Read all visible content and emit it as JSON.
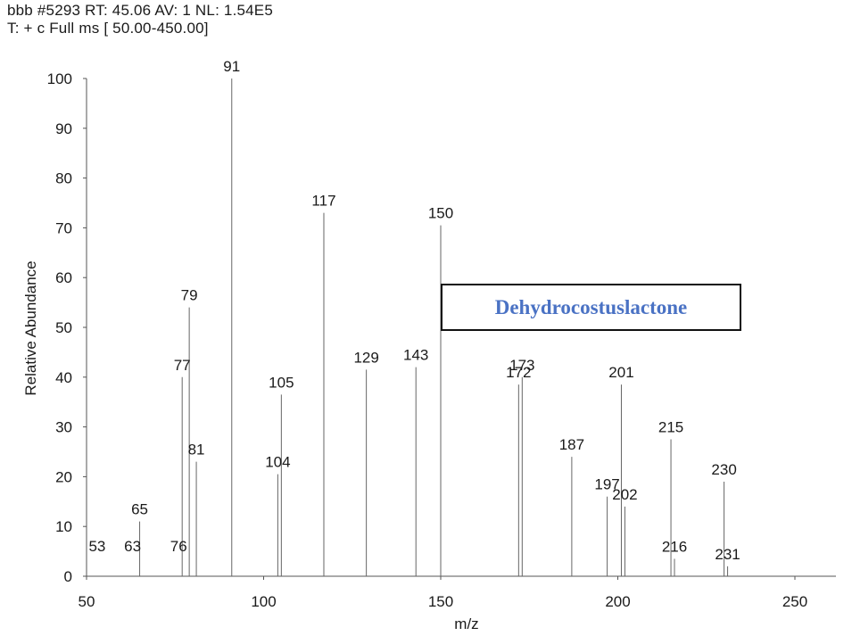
{
  "header": {
    "line1": "bbb #5293  RT: 45.06  AV: 1  NL: 1.54E5",
    "line2": "T: + c Full ms [ 50.00-450.00]"
  },
  "annotation": {
    "compound": "Dehydrocostuslactone",
    "color": "#4a72c4"
  },
  "chart_data": {
    "type": "bar",
    "title": "",
    "xlabel": "m/z",
    "ylabel": "Relative Abundance",
    "xlim": [
      50,
      255
    ],
    "ylim": [
      0,
      100
    ],
    "xticks": [
      50,
      100,
      150,
      200,
      250
    ],
    "yticks": [
      0,
      10,
      20,
      30,
      40,
      50,
      60,
      70,
      80,
      90,
      100
    ],
    "grid": false,
    "peaks": [
      {
        "mz": 53,
        "abundance": 0,
        "label": "53"
      },
      {
        "mz": 63,
        "abundance": 0,
        "label": "63"
      },
      {
        "mz": 65,
        "abundance": 11,
        "label": "65"
      },
      {
        "mz": 76,
        "abundance": 0,
        "label": "76"
      },
      {
        "mz": 77,
        "abundance": 40,
        "label": "77"
      },
      {
        "mz": 79,
        "abundance": 54,
        "label": "79"
      },
      {
        "mz": 81,
        "abundance": 23,
        "label": "81"
      },
      {
        "mz": 91,
        "abundance": 100,
        "label": "91"
      },
      {
        "mz": 104,
        "abundance": 20.5,
        "label": "104"
      },
      {
        "mz": 105,
        "abundance": 36.5,
        "label": "105"
      },
      {
        "mz": 117,
        "abundance": 73,
        "label": "117"
      },
      {
        "mz": 129,
        "abundance": 41.5,
        "label": "129"
      },
      {
        "mz": 143,
        "abundance": 42,
        "label": "143"
      },
      {
        "mz": 150,
        "abundance": 70.5,
        "label": "150"
      },
      {
        "mz": 172,
        "abundance": 38.5,
        "label": "172"
      },
      {
        "mz": 173,
        "abundance": 40,
        "label": "173"
      },
      {
        "mz": 187,
        "abundance": 24,
        "label": "187"
      },
      {
        "mz": 197,
        "abundance": 16,
        "label": "197"
      },
      {
        "mz": 201,
        "abundance": 38.5,
        "label": "201"
      },
      {
        "mz": 202,
        "abundance": 14,
        "label": "202"
      },
      {
        "mz": 215,
        "abundance": 27.5,
        "label": "215"
      },
      {
        "mz": 216,
        "abundance": 3.5,
        "label": "216"
      },
      {
        "mz": 230,
        "abundance": 19,
        "label": "230"
      },
      {
        "mz": 231,
        "abundance": 2,
        "label": "231"
      }
    ]
  }
}
